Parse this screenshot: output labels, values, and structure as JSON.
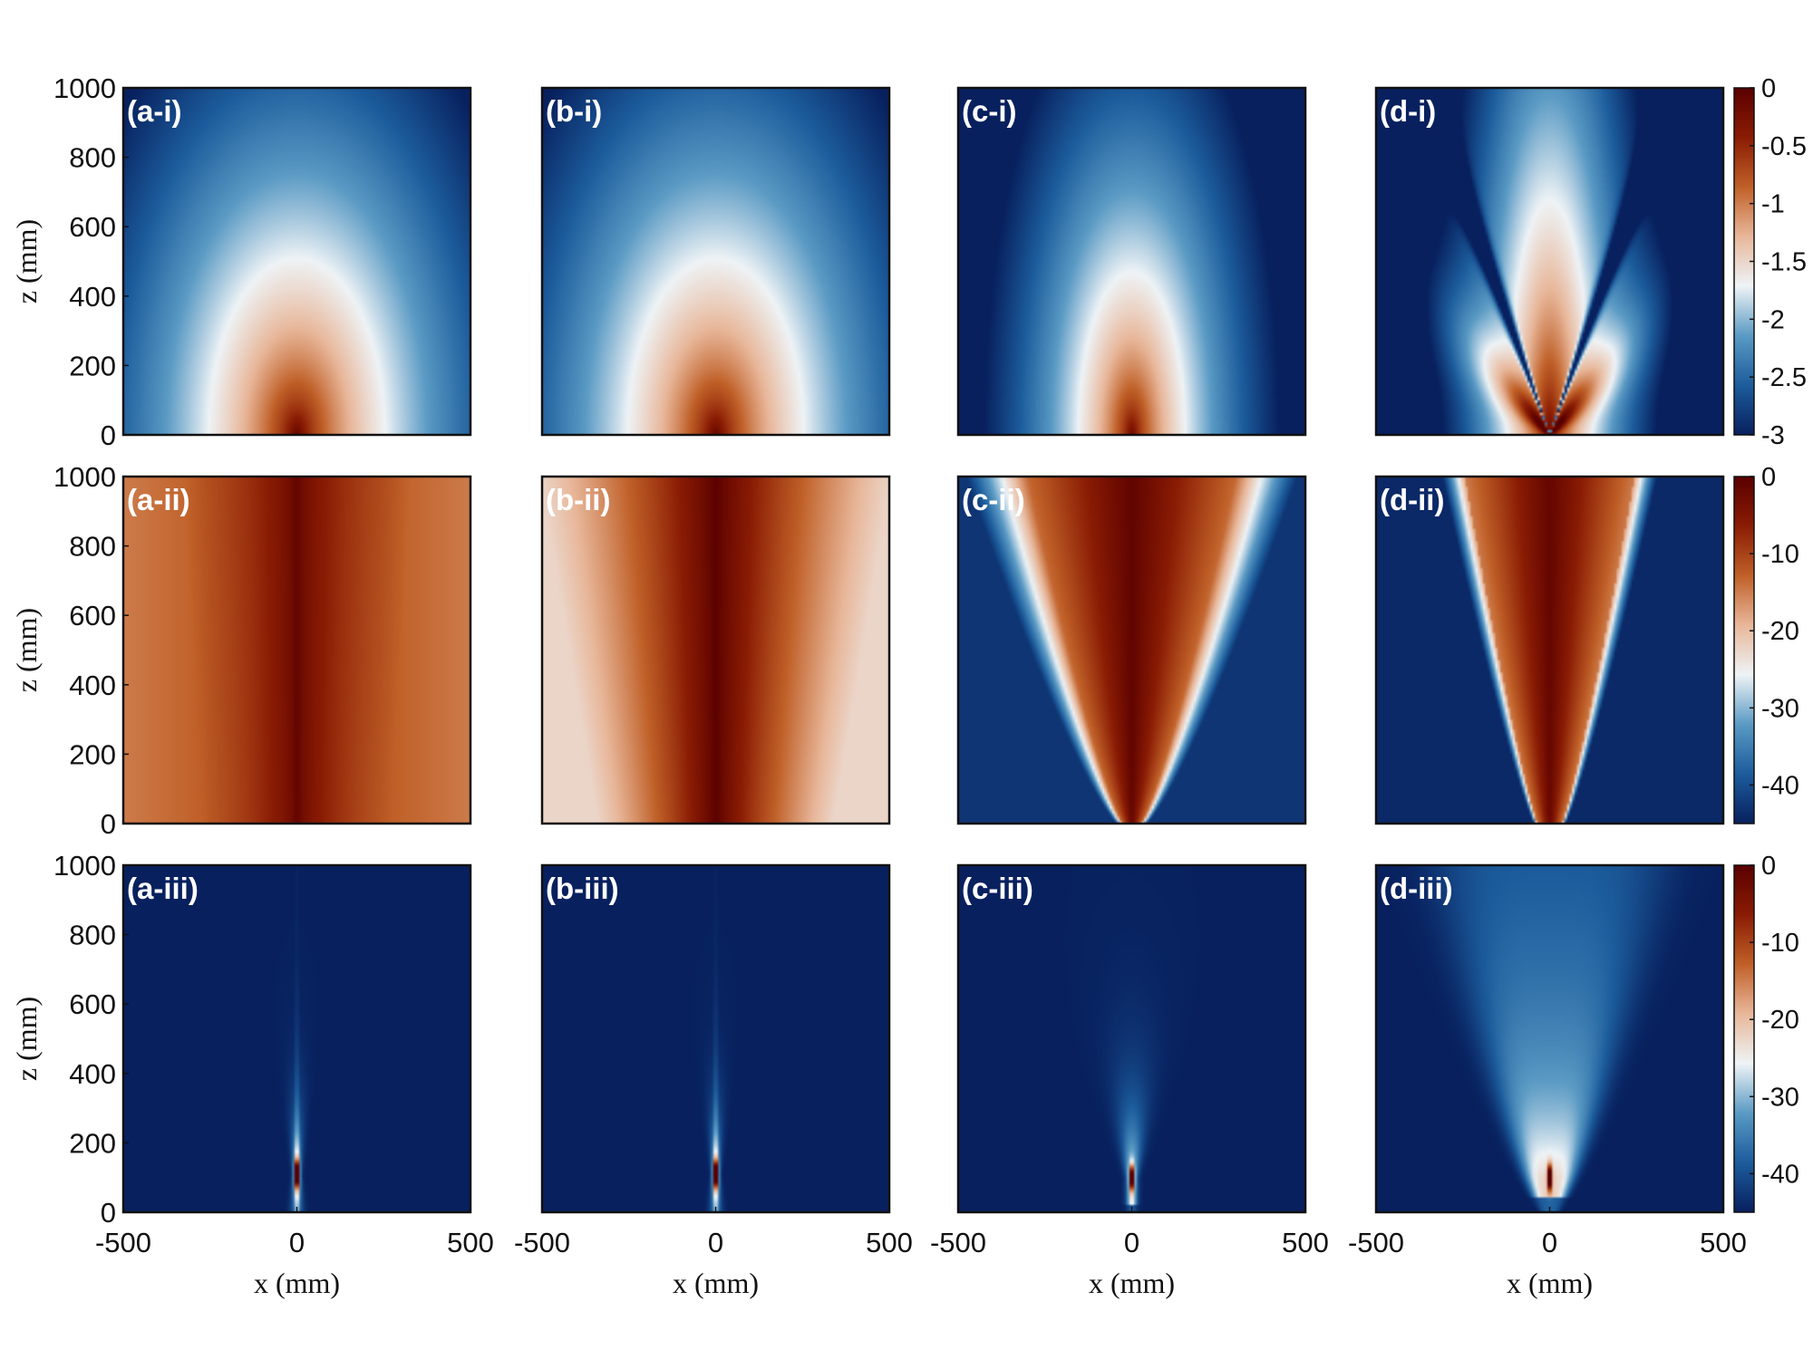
{
  "colors": {
    "colormap": [
      "#08205e",
      "#1c5c9c",
      "#5a9ac4",
      "#eef3f6",
      "#e8b79a",
      "#c06028",
      "#8a1c04",
      "#5a0000"
    ],
    "frame": "#111111",
    "label": "#ffffff"
  },
  "chart_data": {
    "type": "heatmap",
    "layout": "3 rows x 4 columns",
    "xlabel": "x (mm)",
    "ylabel": "z (mm)",
    "xlim": [
      -500,
      500
    ],
    "ylim": [
      0,
      1000
    ],
    "xticks": [
      "-500",
      "0",
      "500"
    ],
    "yticks": [
      "0",
      "200",
      "400",
      "600",
      "800",
      "1000"
    ],
    "colorbars": [
      {
        "row": 1,
        "range": [
          -3,
          0
        ],
        "ticks": [
          "0",
          "-0.5",
          "-1",
          "-1.5",
          "-2",
          "-2.5",
          "-3"
        ]
      },
      {
        "row": 2,
        "range": [
          -45,
          0
        ],
        "ticks": [
          "0",
          "-10",
          "-20",
          "-30",
          "-40"
        ]
      },
      {
        "row": 3,
        "range": [
          -45,
          0
        ],
        "ticks": [
          "0",
          "-10",
          "-20",
          "-30",
          "-40"
        ]
      }
    ],
    "panels": [
      {
        "label": "(a-i)",
        "row": 1,
        "col": 1,
        "pattern": "radial"
      },
      {
        "label": "(b-i)",
        "row": 1,
        "col": 2,
        "pattern": "radial"
      },
      {
        "label": "(c-i)",
        "row": 1,
        "col": 3,
        "pattern": "radial-narrow"
      },
      {
        "label": "(d-i)",
        "row": 1,
        "col": 4,
        "pattern": "radial-lobed"
      },
      {
        "label": "(a-ii)",
        "row": 2,
        "col": 1,
        "pattern": "beam-wide"
      },
      {
        "label": "(b-ii)",
        "row": 2,
        "col": 2,
        "pattern": "beam"
      },
      {
        "label": "(c-ii)",
        "row": 2,
        "col": 3,
        "pattern": "beam-cone"
      },
      {
        "label": "(d-ii)",
        "row": 2,
        "col": 4,
        "pattern": "beam-cone-narrow"
      },
      {
        "label": "(a-iii)",
        "row": 3,
        "col": 1,
        "pattern": "focus-small"
      },
      {
        "label": "(b-iii)",
        "row": 3,
        "col": 2,
        "pattern": "focus-small"
      },
      {
        "label": "(c-iii)",
        "row": 3,
        "col": 3,
        "pattern": "focus-fan"
      },
      {
        "label": "(d-iii)",
        "row": 3,
        "col": 4,
        "pattern": "focus-cone"
      }
    ]
  }
}
